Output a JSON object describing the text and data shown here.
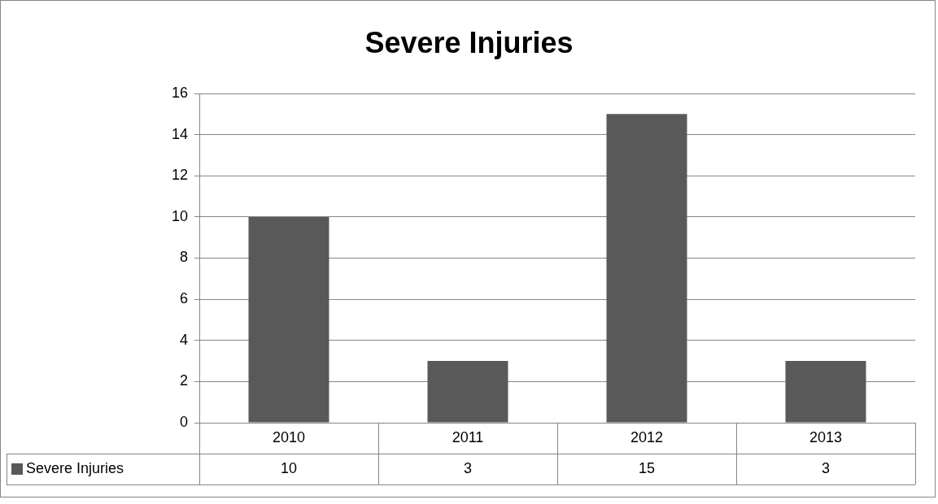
{
  "chart_data": {
    "type": "bar",
    "title": "Severe Injuries",
    "categories": [
      "2010",
      "2011",
      "2012",
      "2013"
    ],
    "series": [
      {
        "name": "Severe Injuries",
        "color": "#595959",
        "values": [
          10,
          3,
          15,
          3
        ]
      }
    ],
    "ylim": [
      0,
      16
    ],
    "yticks": [
      0,
      2,
      4,
      6,
      8,
      10,
      12,
      14,
      16
    ],
    "grid": "y",
    "legend": "bottom left",
    "data_labels": true
  }
}
